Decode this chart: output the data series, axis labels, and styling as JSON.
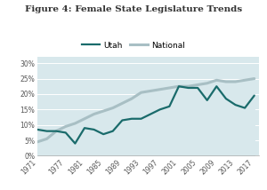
{
  "title": "Figure 4: Female State Legislature Trends",
  "years": [
    1971,
    1973,
    1975,
    1977,
    1979,
    1981,
    1983,
    1985,
    1987,
    1989,
    1991,
    1993,
    1995,
    1997,
    1999,
    2001,
    2003,
    2005,
    2007,
    2009,
    2011,
    2013,
    2015,
    2017
  ],
  "utah": [
    8.5,
    8.0,
    8.0,
    7.5,
    4.0,
    9.0,
    8.5,
    7.0,
    8.0,
    11.5,
    12.0,
    12.0,
    13.5,
    15.0,
    16.0,
    22.5,
    22.0,
    22.0,
    18.0,
    22.5,
    18.5,
    16.5,
    15.5,
    19.5
  ],
  "national": [
    4.5,
    5.5,
    8.0,
    9.5,
    10.5,
    12.0,
    13.5,
    14.5,
    15.5,
    17.0,
    18.5,
    20.5,
    21.0,
    21.5,
    22.0,
    22.5,
    22.5,
    23.0,
    23.5,
    24.5,
    24.0,
    24.0,
    24.5,
    25.0
  ],
  "utah_color": "#1a6b6b",
  "national_color": "#a8bfc4",
  "background_color": "#d8e8ec",
  "fig_background": "#ffffff",
  "ylim": [
    0,
    32
  ],
  "yticks": [
    0,
    5,
    10,
    15,
    20,
    25,
    30
  ],
  "ytick_labels": [
    "0%",
    "5%",
    "10%",
    "15%",
    "20%",
    "25%",
    "30%"
  ],
  "xtick_labels": [
    "1971",
    "1977",
    "1981",
    "1985",
    "1989",
    "1993",
    "1997",
    "2001",
    "2005",
    "2009",
    "2013",
    "2017"
  ],
  "xtick_positions": [
    1971,
    1977,
    1981,
    1985,
    1989,
    1993,
    1997,
    2001,
    2005,
    2009,
    2013,
    2017
  ],
  "legend_labels": [
    "Utah",
    "National"
  ],
  "title_fontsize": 7.5,
  "tick_fontsize": 5.5,
  "legend_fontsize": 6.5,
  "utah_linewidth": 1.6,
  "national_linewidth": 2.2,
  "grid_color": "#c0d4d8",
  "tick_color": "#555555"
}
